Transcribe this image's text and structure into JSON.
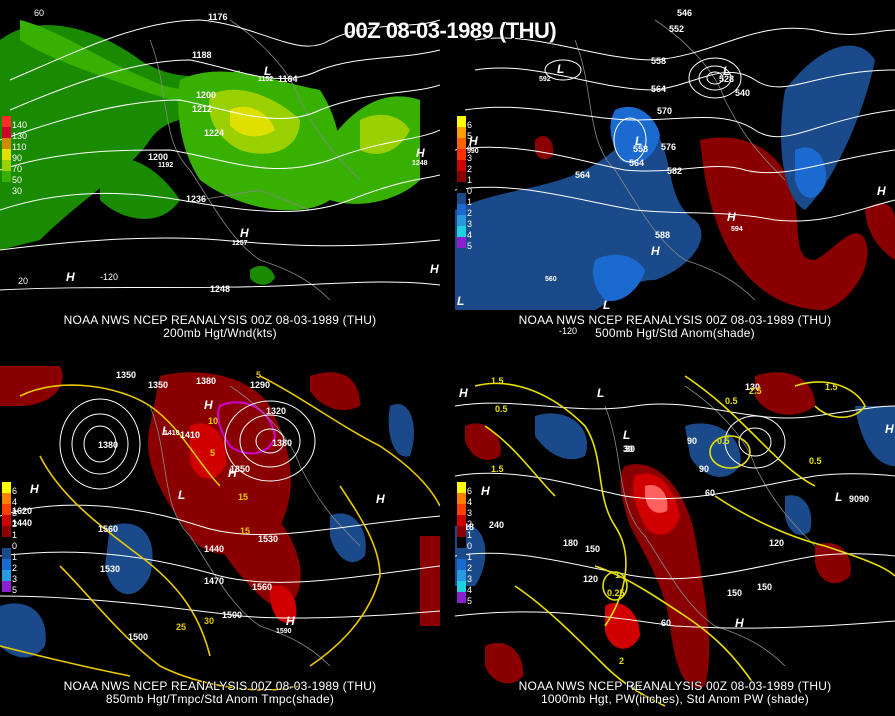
{
  "title": "00Z 08-03-1989 (THU)",
  "panels": [
    {
      "id": "p200",
      "caption_line1": "NOAA NWS NCEP REANALYSIS 00Z 08-03-1989 (THU)",
      "caption_line2": "200mb Hgt/Wnd(kts)",
      "legend": [
        {
          "label": "140",
          "color": "#ff2a2a"
        },
        {
          "label": "130",
          "color": "#d0002a"
        },
        {
          "label": "110",
          "color": "#d08a00"
        },
        {
          "label": "90",
          "color": "#e0e000"
        },
        {
          "label": "70",
          "color": "#9ad000"
        },
        {
          "label": "50",
          "color": "#38b000"
        },
        {
          "label": "30",
          "color": "#1a8a00"
        }
      ],
      "contour_labels": [
        "1176",
        "1188",
        "1200",
        "1212",
        "1224",
        "1200",
        "1236",
        "1248",
        "1164",
        "1152",
        "1192",
        "1257",
        "1248"
      ],
      "tick_labels": [
        "60",
        "-120",
        "20"
      ],
      "pressure_labels": [
        "H",
        "H",
        "L",
        "H",
        "H"
      ]
    },
    {
      "id": "p500",
      "caption_line1": "NOAA NWS NCEP REANALYSIS 00Z 08-03-1989 (THU)",
      "caption_line2": "500mb Hgt/Std Anom(shade)",
      "legend": [
        {
          "label": "6",
          "color": "#ffff00"
        },
        {
          "label": "5",
          "color": "#ffa000"
        },
        {
          "label": "4",
          "color": "#ff6000"
        },
        {
          "label": "3",
          "color": "#ff3000"
        },
        {
          "label": "2",
          "color": "#d00000"
        },
        {
          "label": "1",
          "color": "#8a0000"
        },
        {
          "label": "0",
          "color": "#000000"
        },
        {
          "label": "1",
          "color": "#1a4a8a"
        },
        {
          "label": "2",
          "color": "#1a6ad0"
        },
        {
          "label": "3",
          "color": "#2a9ae0"
        },
        {
          "label": "4",
          "color": "#20d0e0"
        },
        {
          "label": "5",
          "color": "#8a20d0"
        }
      ],
      "contour_labels": [
        "546",
        "552",
        "558",
        "564",
        "570",
        "576",
        "582",
        "588",
        "564",
        "558",
        "528",
        "540",
        "592",
        "594",
        "590",
        "560",
        "564"
      ],
      "tick_labels": [
        "-120"
      ],
      "pressure_labels": [
        "H",
        "L",
        "L",
        "L",
        "H",
        "H",
        "H",
        "L",
        "L"
      ]
    },
    {
      "id": "p850",
      "caption_line1": "NOAA NWS NCEP REANALYSIS 00Z 08-03-1989 (THU)",
      "caption_line2": "850mb Hgt/Tmpc/Std Anom Tmpc(shade)",
      "legend": [
        {
          "label": "6",
          "color": "#ffff00"
        },
        {
          "label": "4",
          "color": "#ff8000"
        },
        {
          "label": "3",
          "color": "#ff4000"
        },
        {
          "label": "2",
          "color": "#d00000"
        },
        {
          "label": "1",
          "color": "#8a0000"
        },
        {
          "label": "0",
          "color": "#000000"
        },
        {
          "label": "1",
          "color": "#1a4a8a"
        },
        {
          "label": "2",
          "color": "#1a6ad0"
        },
        {
          "label": "3",
          "color": "#2a9ae0"
        },
        {
          "label": "5",
          "color": "#8a20d0"
        }
      ],
      "contour_labels": [
        "1350",
        "1350",
        "1380",
        "1290",
        "1320",
        "1410",
        "1380",
        "1350",
        "1440",
        "1560",
        "1530",
        "1470",
        "1440",
        "1500",
        "1560",
        "1500",
        "1530",
        "1590",
        "1620",
        "1380",
        "1410"
      ],
      "temp_labels": [
        "5",
        "10",
        "15",
        "15",
        "25",
        "30",
        "5"
      ],
      "pressure_labels": [
        "H",
        "H",
        "L",
        "H",
        "L",
        "H",
        "H"
      ]
    },
    {
      "id": "p1000",
      "caption_line1": "NOAA NWS NCEP REANALYSIS 00Z 08-03-1989 (THU)",
      "caption_line2": "1000mb Hgt, PW(inches), Std Anom PW (shade)",
      "legend": [
        {
          "label": "6",
          "color": "#ffff00"
        },
        {
          "label": "4",
          "color": "#ff8000"
        },
        {
          "label": "3",
          "color": "#ff4000"
        },
        {
          "label": "2",
          "color": "#d00000"
        },
        {
          "label": "1",
          "color": "#8a0000"
        },
        {
          "label": "0",
          "color": "#000000"
        },
        {
          "label": "1",
          "color": "#1a4a8a"
        },
        {
          "label": "2",
          "color": "#1a6ad0"
        },
        {
          "label": "3",
          "color": "#2a9ae0"
        },
        {
          "label": "4",
          "color": "#20d0e0"
        },
        {
          "label": "5",
          "color": "#8a20d0"
        }
      ],
      "contour_labels": [
        "1.5",
        "0.5",
        "1.5",
        "130",
        "90",
        "30",
        "90",
        "60",
        "90",
        "120",
        "150",
        "180",
        "150",
        "120",
        "150",
        "240",
        "218",
        "90",
        "60",
        "90",
        "30"
      ],
      "pw_labels": [
        "0.5",
        "0.5",
        "2.5",
        "1.5",
        "0.25",
        "1",
        "0.5",
        "2"
      ],
      "pressure_labels": [
        "H",
        "L",
        "H",
        "H",
        "L",
        "L",
        "H"
      ]
    }
  ]
}
